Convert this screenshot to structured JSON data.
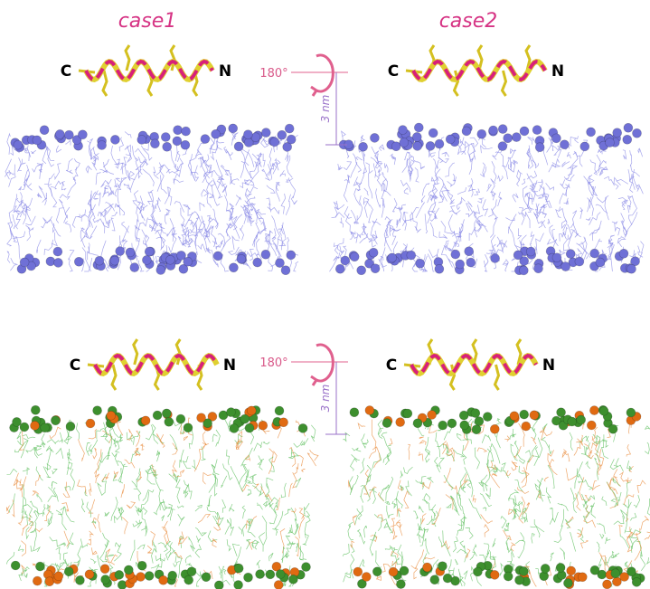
{
  "titles": [
    "case1",
    "case2"
  ],
  "rows": [
    {
      "panels": [
        {
          "c": "C",
          "n": "N"
        },
        {
          "c": "C",
          "n": "N"
        }
      ],
      "rotation": "180°",
      "distance": "3 nm"
    },
    {
      "panels": [
        {
          "c": "C",
          "n": "N"
        },
        {
          "c": "C",
          "n": "N"
        }
      ],
      "rotation": "180°",
      "distance": "3 nm"
    }
  ]
}
